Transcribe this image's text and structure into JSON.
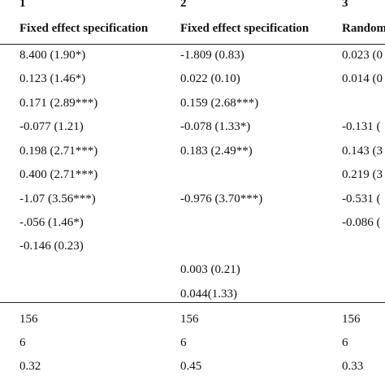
{
  "columns": [
    {
      "number": "1",
      "header": "Fixed effect specification",
      "cells": [
        "8.400 (1.90*)",
        "0.123 (1.46*)",
        "0.171 (2.89***)",
        "-0.077 (1.21)",
        "0.198 (2.71***)",
        "0.400 (2.71***)",
        "-1.07 (3.56***)",
        "-.056 (1.46*)",
        "-0.146 (0.23)",
        "",
        "",
        "156",
        "6",
        "0.32"
      ]
    },
    {
      "number": "2",
      "header": "Fixed effect specification",
      "cells": [
        "-1.809 (0.83)",
        "0.022 (0.10)",
        "0.159 (2.68***)",
        "-0.078 (1.33*)",
        "0.183 (2.49**)",
        "",
        "-0.976 (3.70***)",
        "",
        "",
        "0.003 (0.21)",
        "0.044(1.33)",
        "156",
        "6",
        "0.45"
      ]
    },
    {
      "number": "3",
      "header": "Random",
      "cells": [
        "0.023 (0",
        "0.014 (0",
        "",
        "-0.131 (",
        "0.143 (3",
        "0.219 (3",
        "-0.531 (",
        "-0.086 (",
        "",
        "",
        "",
        "156",
        "6",
        "0.33"
      ]
    }
  ]
}
